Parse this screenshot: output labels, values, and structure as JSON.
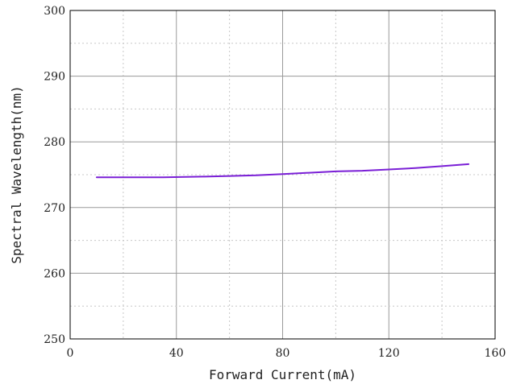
{
  "chart_data": {
    "type": "line",
    "title": "",
    "xlabel": "Forward Current(mA)",
    "ylabel": "Spectral Wavelength(nm)",
    "xlim": [
      0,
      160
    ],
    "ylim": [
      250,
      300
    ],
    "x_ticks": [
      0,
      40,
      80,
      120,
      160
    ],
    "y_ticks": [
      250,
      260,
      270,
      280,
      290,
      300
    ],
    "x_minor_step": 20,
    "y_minor_step": 5,
    "grid": true,
    "series": [
      {
        "color": "#7a1fd6",
        "x": [
          10,
          20,
          35,
          50,
          60,
          70,
          80,
          90,
          100,
          110,
          120,
          130,
          140,
          150
        ],
        "y": [
          274.6,
          274.6,
          274.6,
          274.7,
          274.8,
          274.9,
          275.1,
          275.3,
          275.5,
          275.6,
          275.8,
          276.0,
          276.3,
          276.6
        ]
      }
    ]
  }
}
